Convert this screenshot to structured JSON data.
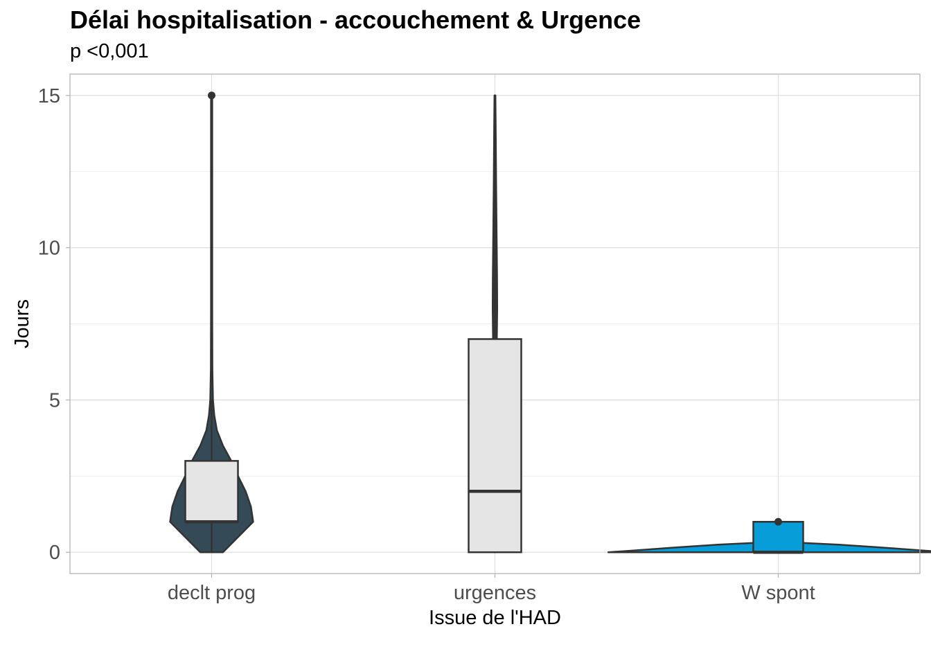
{
  "chart_data": {
    "type": "violin",
    "title": "Délai hospitalisation - accouchement & Urgence",
    "subtitle": "p <0,001",
    "xlabel": "Issue de l'HAD",
    "ylabel": "Jours",
    "ylim": [
      -0.7,
      15.7
    ],
    "yticks": [
      0,
      5,
      10,
      15
    ],
    "grid": true,
    "categories": [
      "declt prog",
      "urgences",
      "W spont"
    ],
    "colors": {
      "declt prog": "#344a56",
      "urgences": "#3a3a3a",
      "W spont": "#079dd8",
      "box_fill": "#e5e5e5",
      "outline": "#333333"
    },
    "groups": [
      {
        "name": "declt prog",
        "box": {
          "q1": 1,
          "median": 1,
          "q3": 3,
          "whisker_low": 0,
          "whisker_high": 5
        },
        "outliers": [
          15
        ],
        "violin_max": 15,
        "violin_min": 0
      },
      {
        "name": "urgences",
        "box": {
          "q1": 0,
          "median": 2,
          "q3": 7,
          "whisker_low": 0,
          "whisker_high": 15
        },
        "outliers": [],
        "violin_max": 15,
        "violin_min": 0
      },
      {
        "name": "W spont",
        "box": {
          "q1": 0,
          "median": 0,
          "q3": 1,
          "whisker_low": 0,
          "whisker_high": 1
        },
        "outliers": [
          1
        ],
        "violin_max": 1,
        "violin_min": 0
      }
    ]
  }
}
